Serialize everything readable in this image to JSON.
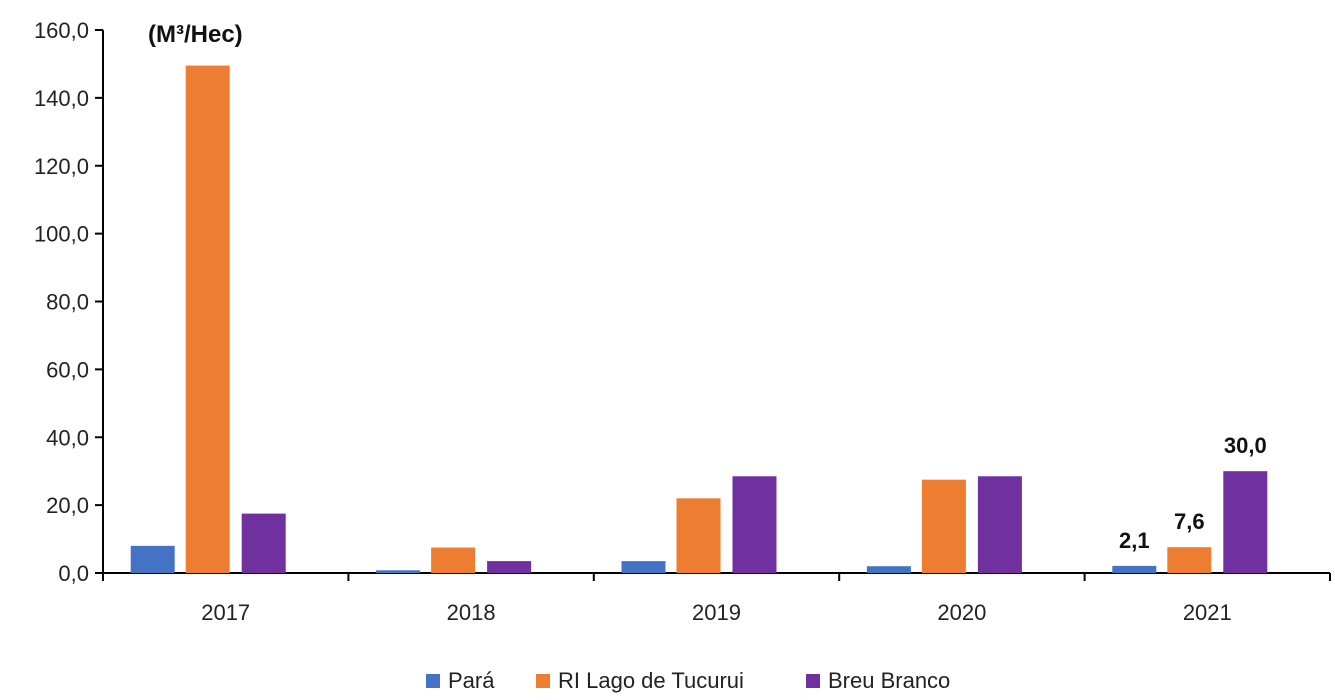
{
  "chart_data": {
    "type": "bar",
    "unit_label": "(M³/Hec)",
    "categories": [
      "2017",
      "2018",
      "2019",
      "2020",
      "2021"
    ],
    "ylim": [
      0,
      160
    ],
    "y_ticks": [
      "0,0",
      "20,0",
      "40,0",
      "60,0",
      "80,0",
      "100,0",
      "120,0",
      "140,0",
      "160,0"
    ],
    "grid": false,
    "legend_position": "bottom-center",
    "series": [
      {
        "name": "Pará",
        "color": "#4472C4",
        "values": [
          8.0,
          0.8,
          3.5,
          2.0,
          2.1
        ]
      },
      {
        "name": "RI Lago de Tucurui",
        "color": "#ED7D31",
        "values": [
          149.5,
          7.5,
          22.0,
          27.5,
          7.6
        ]
      },
      {
        "name": "Breu Branco",
        "color": "#7030A0",
        "values": [
          17.5,
          3.5,
          28.5,
          28.5,
          30.0
        ]
      }
    ],
    "data_labels": [
      {
        "category_index": 4,
        "series_index": 0,
        "text": "2,1"
      },
      {
        "category_index": 4,
        "series_index": 1,
        "text": "7,6"
      },
      {
        "category_index": 4,
        "series_index": 2,
        "text": "30,0"
      }
    ]
  }
}
